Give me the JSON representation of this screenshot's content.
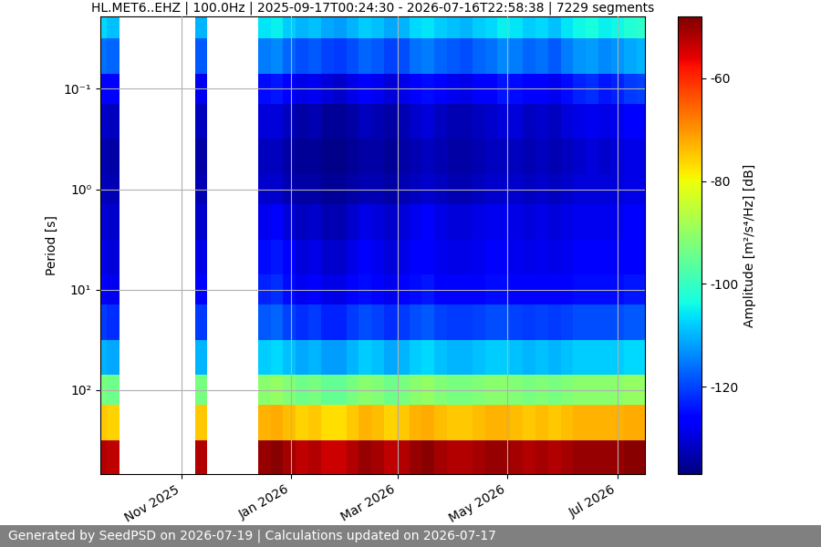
{
  "chart_data": {
    "type": "heatmap",
    "title": "HL.MET6..EHZ | 100.0Hz | 2025-09-17T00:24:30 - 2026-07-16T22:58:38 | 7229 segments",
    "footer": "Generated by SeedPSD on 2026-07-19 | Calculations updated on 2026-07-17",
    "y_label": "Period [s]",
    "colorbar_label": "Amplitude [m²/s⁴/Hz] [dB]",
    "x": [
      "2025-09-17",
      "2025-09-24",
      "2025-10-01",
      "2025-10-08",
      "2025-10-15",
      "2025-10-22",
      "2025-10-29",
      "2025-11-05",
      "2025-11-12",
      "2025-11-19",
      "2025-11-26",
      "2025-12-03",
      "2025-12-10",
      "2025-12-17",
      "2025-12-24",
      "2025-12-31",
      "2026-01-07",
      "2026-01-14",
      "2026-01-21",
      "2026-01-28",
      "2026-02-04",
      "2026-02-11",
      "2026-02-18",
      "2026-02-25",
      "2026-03-04",
      "2026-03-11",
      "2026-03-18",
      "2026-03-25",
      "2026-04-01",
      "2026-04-08",
      "2026-04-15",
      "2026-04-22",
      "2026-04-29",
      "2026-05-06",
      "2026-05-13",
      "2026-05-20",
      "2026-05-27",
      "2026-06-03",
      "2026-06-10",
      "2026-06-17",
      "2026-06-24",
      "2026-07-01",
      "2026-07-08",
      "2026-07-15"
    ],
    "y": [
      0.02,
      0.05,
      0.1,
      0.2,
      0.5,
      1,
      2,
      5,
      10,
      20,
      50,
      100,
      200,
      500
    ],
    "cells": [
      [
        -107,
        -109,
        null,
        null,
        null,
        null,
        null,
        null,
        -110,
        null,
        null,
        null,
        null,
        -106,
        -105,
        -108,
        -110,
        -109,
        -111,
        -112,
        -110,
        -108,
        -109,
        -111,
        -110,
        -107,
        -106,
        -108,
        -109,
        -110,
        -108,
        -107,
        -105,
        -106,
        -108,
        -107,
        -109,
        -106,
        -104,
        -103,
        -105,
        -104,
        -102,
        -101
      ],
      [
        -116,
        -117,
        null,
        null,
        null,
        null,
        null,
        null,
        -118,
        null,
        null,
        null,
        null,
        -115,
        -114,
        -117,
        -119,
        -118,
        -120,
        -121,
        -119,
        -117,
        -118,
        -120,
        -119,
        -116,
        -115,
        -117,
        -118,
        -119,
        -117,
        -116,
        -114,
        -115,
        -117,
        -116,
        -118,
        -115,
        -113,
        -112,
        -114,
        -113,
        -111,
        -110
      ],
      [
        -126,
        -127,
        null,
        null,
        null,
        null,
        null,
        null,
        -128,
        null,
        null,
        null,
        null,
        -125,
        -124,
        -127,
        -129,
        -128,
        -130,
        -131,
        -129,
        -127,
        -128,
        -130,
        -129,
        -126,
        -125,
        -127,
        -128,
        -129,
        -127,
        -126,
        -124,
        -125,
        -127,
        -126,
        -128,
        -125,
        -123,
        -122,
        -124,
        -123,
        -121,
        -120
      ],
      [
        -131,
        -132,
        null,
        null,
        null,
        null,
        null,
        null,
        -132,
        null,
        null,
        null,
        null,
        -130,
        -130,
        -132,
        -134,
        -133,
        -135,
        -135,
        -134,
        -132,
        -133,
        -134,
        -133,
        -131,
        -130,
        -132,
        -133,
        -133,
        -132,
        -131,
        -130,
        -130,
        -132,
        -131,
        -132,
        -130,
        -129,
        -128,
        -129,
        -128,
        -127,
        -126
      ],
      [
        -133,
        -134,
        null,
        null,
        null,
        null,
        null,
        null,
        -134,
        null,
        null,
        null,
        null,
        -132,
        -132,
        -134,
        -135,
        -135,
        -136,
        -136,
        -135,
        -134,
        -134,
        -135,
        -134,
        -133,
        -132,
        -133,
        -134,
        -134,
        -133,
        -132,
        -132,
        -132,
        -133,
        -132,
        -133,
        -132,
        -131,
        -130,
        -131,
        -130,
        -129,
        -129
      ],
      [
        -132,
        -133,
        null,
        null,
        null,
        null,
        null,
        null,
        -133,
        null,
        null,
        null,
        null,
        -131,
        -131,
        -133,
        -134,
        -134,
        -135,
        -135,
        -134,
        -133,
        -133,
        -134,
        -133,
        -132,
        -131,
        -132,
        -133,
        -133,
        -132,
        -131,
        -131,
        -131,
        -132,
        -131,
        -132,
        -131,
        -130,
        -130,
        -130,
        -130,
        -129,
        -129
      ],
      [
        -130,
        -131,
        null,
        null,
        null,
        null,
        null,
        null,
        -131,
        null,
        null,
        null,
        null,
        -128,
        -127,
        -130,
        -132,
        -131,
        -133,
        -133,
        -131,
        -129,
        -130,
        -131,
        -130,
        -128,
        -127,
        -129,
        -130,
        -130,
        -129,
        -128,
        -128,
        -129,
        -130,
        -129,
        -130,
        -129,
        -128,
        -128,
        -128,
        -128,
        -127,
        -127
      ],
      [
        -129,
        -130,
        null,
        null,
        null,
        null,
        null,
        null,
        -129,
        null,
        null,
        null,
        null,
        -125,
        -124,
        -127,
        -130,
        -129,
        -131,
        -131,
        -129,
        -127,
        -128,
        -130,
        -129,
        -127,
        -126,
        -128,
        -129,
        -129,
        -128,
        -127,
        -127,
        -128,
        -129,
        -128,
        -129,
        -128,
        -127,
        -127,
        -127,
        -127,
        -126,
        -126
      ],
      [
        -127,
        -128,
        null,
        null,
        null,
        null,
        null,
        null,
        -127,
        null,
        null,
        null,
        null,
        -123,
        -122,
        -125,
        -128,
        -127,
        -129,
        -129,
        -127,
        -125,
        -126,
        -128,
        -127,
        -125,
        -124,
        -126,
        -127,
        -127,
        -126,
        -125,
        -125,
        -126,
        -127,
        -126,
        -127,
        -126,
        -125,
        -125,
        -125,
        -125,
        -124,
        -124
      ],
      [
        -121,
        -122,
        null,
        null,
        null,
        null,
        null,
        null,
        -121,
        null,
        null,
        null,
        null,
        -118,
        -117,
        -120,
        -122,
        -121,
        -123,
        -123,
        -121,
        -119,
        -120,
        -122,
        -121,
        -119,
        -118,
        -120,
        -121,
        -121,
        -120,
        -119,
        -119,
        -120,
        -121,
        -120,
        -121,
        -120,
        -119,
        -119,
        -119,
        -119,
        -118,
        -118
      ],
      [
        -110,
        -111,
        null,
        null,
        null,
        null,
        null,
        null,
        -110,
        null,
        null,
        null,
        null,
        -108,
        -107,
        -109,
        -111,
        -110,
        -112,
        -112,
        -110,
        -108,
        -109,
        -111,
        -110,
        -108,
        -107,
        -109,
        -110,
        -110,
        -109,
        -108,
        -108,
        -109,
        -110,
        -109,
        -110,
        -109,
        -108,
        -108,
        -108,
        -108,
        -107,
        -107
      ],
      [
        -93,
        -94,
        null,
        null,
        null,
        null,
        null,
        null,
        -93,
        null,
        null,
        null,
        null,
        -91,
        -90,
        -92,
        -94,
        -93,
        -95,
        -95,
        -93,
        -91,
        -92,
        -94,
        -93,
        -91,
        -90,
        -92,
        -93,
        -93,
        -92,
        -91,
        -91,
        -92,
        -93,
        -92,
        -93,
        -92,
        -91,
        -91,
        -91,
        -91,
        -90,
        -90
      ],
      [
        -75,
        -76,
        null,
        null,
        null,
        null,
        null,
        null,
        -75,
        null,
        null,
        null,
        null,
        -73,
        -72,
        -74,
        -76,
        -75,
        -77,
        -77,
        -75,
        -73,
        -74,
        -76,
        -75,
        -73,
        -72,
        -74,
        -75,
        -75,
        -74,
        -73,
        -73,
        -74,
        -75,
        -74,
        -75,
        -74,
        -73,
        -73,
        -73,
        -73,
        -72,
        -72
      ],
      [
        -52,
        -53,
        null,
        null,
        null,
        null,
        null,
        null,
        -52,
        null,
        null,
        null,
        null,
        -50,
        -49,
        -51,
        -53,
        -52,
        -54,
        -54,
        -52,
        -50,
        -51,
        -53,
        -52,
        -50,
        -49,
        -51,
        -52,
        -52,
        -51,
        -50,
        -50,
        -51,
        -52,
        -51,
        -52,
        -51,
        -50,
        -50,
        -50,
        -50,
        -49,
        -49
      ]
    ],
    "xlim": [
      "2025-09-17",
      "2026-07-16"
    ],
    "xticks": [
      {
        "value": "2025-11-01",
        "label": "Nov 2025"
      },
      {
        "value": "2026-01-01",
        "label": "Jan 2026"
      },
      {
        "value": "2026-03-01",
        "label": "Mar 2026"
      },
      {
        "value": "2026-05-01",
        "label": "May 2026"
      },
      {
        "value": "2026-07-01",
        "label": "Jul 2026"
      }
    ],
    "ylim": [
      690,
      0.019
    ],
    "yticks": [
      {
        "value": 0.1,
        "label": "10⁻¹"
      },
      {
        "value": 1,
        "label": "10⁰"
      },
      {
        "value": 10,
        "label": "10¹"
      },
      {
        "value": 100,
        "label": "10²"
      }
    ],
    "log": "y",
    "grid": true,
    "clim": [
      -137,
      -48
    ],
    "cticks": [
      -120,
      -100,
      -80,
      -60
    ]
  }
}
